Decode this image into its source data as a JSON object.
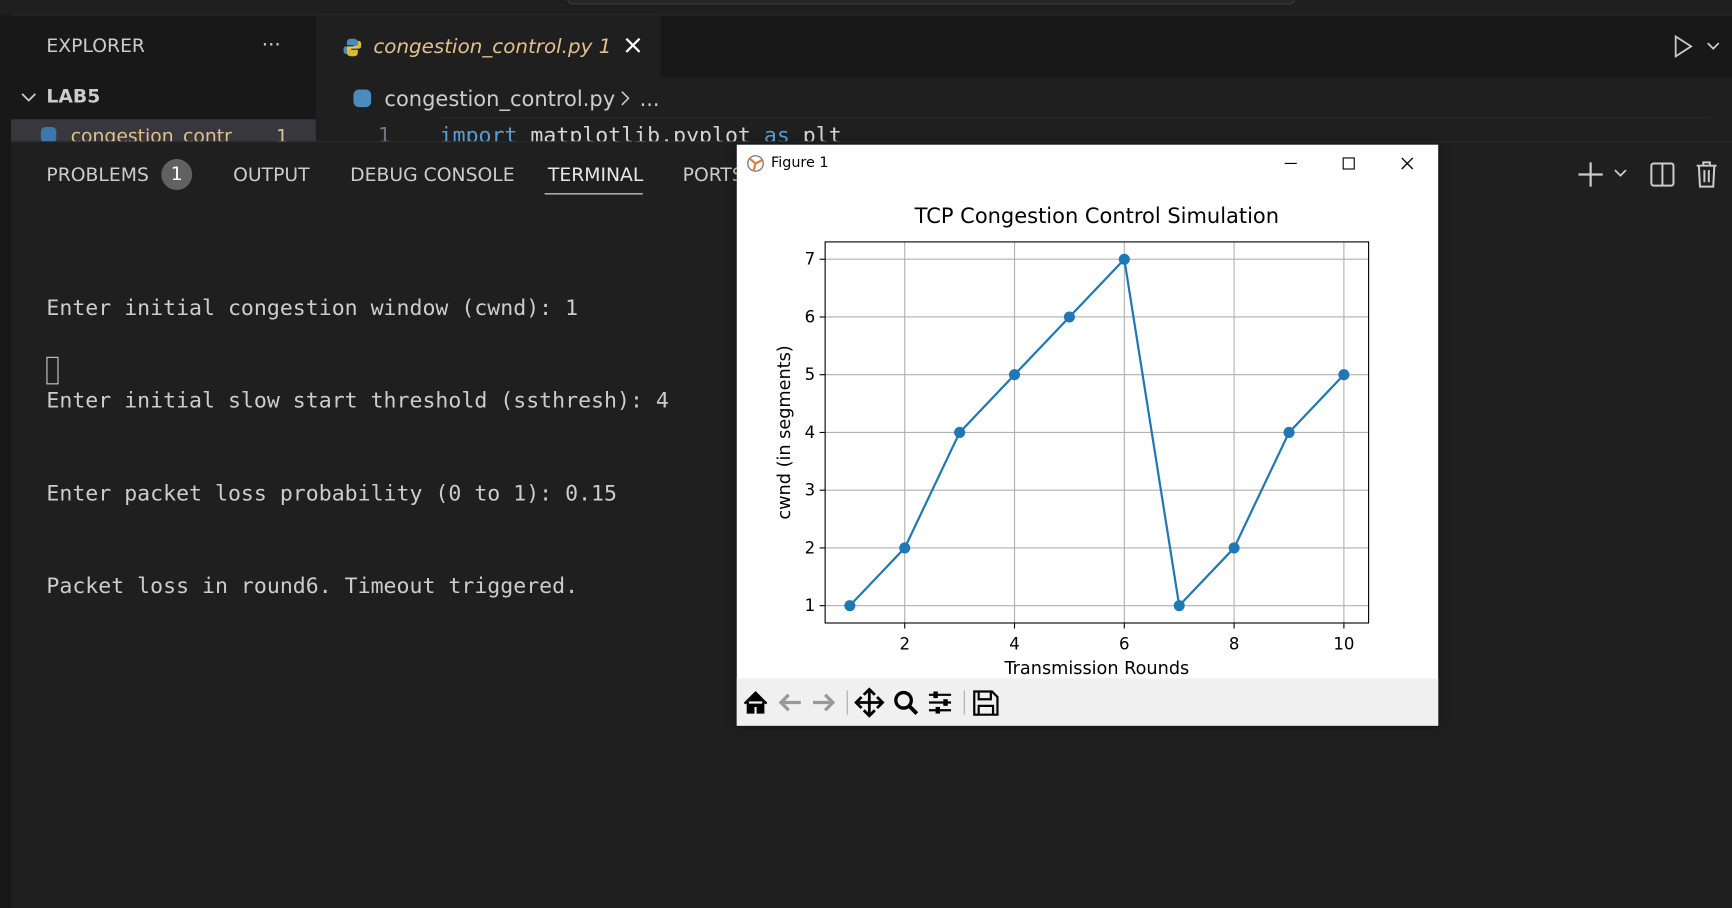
{
  "explorer": {
    "title": "EXPLORER",
    "more": "···",
    "folder": "LAB5",
    "file": "congestion_contr",
    "file_badge": "1"
  },
  "editor": {
    "tab": "congestion_control.py",
    "tab_badge": "1",
    "breadcrumb": "congestion_control.py",
    "breadcrumb_more": "...",
    "line_number": "1",
    "code": [
      "import",
      "matplotlib.pyplot",
      "as",
      "plt"
    ]
  },
  "panel": {
    "tabs": [
      "PROBLEMS",
      "OUTPUT",
      "DEBUG CONSOLE",
      "TERMINAL",
      "PORTS"
    ],
    "problems_badge": "1"
  },
  "terminal": {
    "lines": [
      "Enter initial congestion window (cwnd): 1",
      "Enter initial slow start threshold (ssthresh): 4",
      "Enter packet loss probability (0 to 1): 0.15",
      "Packet loss in round6. Timeout triggered."
    ]
  },
  "figure": {
    "title": "Figure 1"
  },
  "chart_data": {
    "type": "line",
    "title": "TCP Congestion Control Simulation",
    "x_label": "Transmission Rounds",
    "y_label": "cwnd (in segments)",
    "x": [
      1,
      2,
      3,
      4,
      5,
      6,
      7,
      8,
      9,
      10
    ],
    "values": [
      1,
      2,
      4,
      5,
      6,
      7,
      1,
      2,
      4,
      5
    ],
    "color": "#1f77b4",
    "xlim": [
      0.55,
      10.45
    ],
    "ylim": [
      0.7,
      7.3
    ],
    "xticks": [
      2,
      4,
      6,
      8,
      10
    ],
    "yticks": [
      1,
      2,
      3,
      4,
      5,
      6,
      7
    ],
    "grid": true,
    "marker": "o"
  }
}
